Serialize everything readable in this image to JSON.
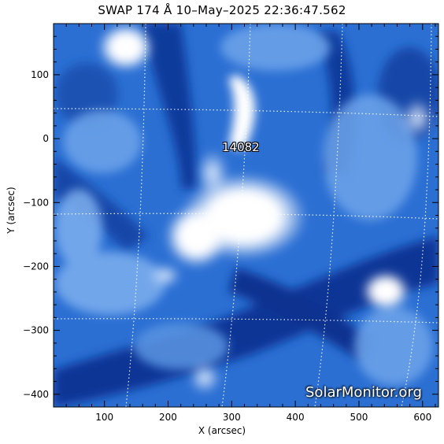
{
  "title": "SWAP 174 Å 10–May–2025 22:36:47.562",
  "x_axis": {
    "label": "X (arcsec)",
    "range": [
      20,
      625
    ],
    "ticks": [
      "100",
      "200",
      "300",
      "400",
      "500",
      "600"
    ],
    "tick_values": [
      100,
      200,
      300,
      400,
      500,
      600
    ]
  },
  "y_axis": {
    "label": "Y (arcsec)",
    "range": [
      -420,
      180
    ],
    "ticks": [
      "100",
      "0",
      "−100",
      "−200",
      "−300",
      "−400"
    ],
    "tick_values": [
      100,
      0,
      -100,
      -200,
      -300,
      -400
    ]
  },
  "region_label": "14082",
  "watermark": "SolarMonitor.org",
  "colors": {
    "base": "#1f63c9",
    "dark": "#0a2f8a",
    "bright": "#ffffff",
    "mid": "#6ea4ea"
  }
}
